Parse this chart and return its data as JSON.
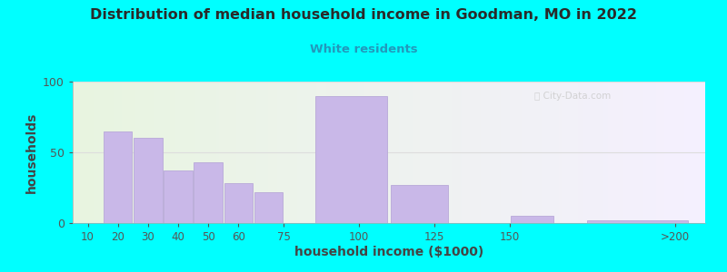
{
  "title": "Distribution of median household income in Goodman, MO in 2022",
  "subtitle": "White residents",
  "xlabel": "household income ($1000)",
  "ylabel": "households",
  "background_outer": "#00FFFF",
  "background_inner_left": "#e8f5e0",
  "background_inner_right": "#f5f0ff",
  "bar_color": "#c9b8e8",
  "bar_edge_color": "#b8a8d8",
  "title_color": "#2a2a2a",
  "subtitle_color": "#2299bb",
  "axis_label_color": "#444444",
  "tick_color": "#555555",
  "gridline_color": "#dddddd",
  "ylim": [
    0,
    100
  ],
  "yticks": [
    0,
    50,
    100
  ],
  "bar_lefts": [
    10,
    15,
    25,
    35,
    45,
    55,
    65,
    85,
    110,
    150,
    175
  ],
  "bar_rights": [
    15,
    25,
    35,
    45,
    55,
    65,
    75,
    110,
    130,
    165,
    210
  ],
  "bar_heights": [
    0,
    65,
    60,
    37,
    43,
    28,
    22,
    90,
    27,
    5,
    2
  ],
  "xtick_labels": [
    "10",
    "20",
    "30",
    "40",
    "50",
    "60",
    "75",
    "100",
    "125",
    "150",
    ">200"
  ],
  "xtick_positions": [
    10,
    20,
    30,
    40,
    50,
    60,
    75,
    100,
    125,
    150,
    205
  ]
}
